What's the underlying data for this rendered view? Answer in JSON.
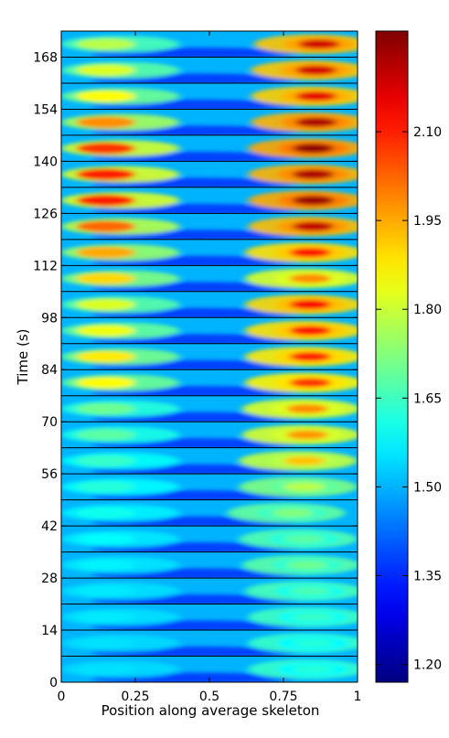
{
  "chart_data": {
    "type": "heatmap",
    "title": "",
    "xlabel": "Position along average skeleton",
    "ylabel": "Time (s)",
    "x_range": [
      0,
      1
    ],
    "y_range": [
      0,
      175
    ],
    "xticks": [
      "0",
      "0.25",
      "0.5",
      "0.75",
      "1"
    ],
    "yticks": [
      "0",
      "14",
      "28",
      "42",
      "56",
      "70",
      "84",
      "98",
      "112",
      "126",
      "140",
      "154",
      "168"
    ],
    "band_duration_s": 7,
    "n_bands": 25,
    "colormap": "jet",
    "colorbar": {
      "range": [
        1.17,
        2.27
      ],
      "ticks": [
        "1.20",
        "1.35",
        "1.50",
        "1.65",
        "1.80",
        "1.95",
        "2.10"
      ]
    },
    "bands": [
      {
        "t_start": 0,
        "left_peak": 1.55,
        "right_peak": 1.62,
        "right_pos": 0.85
      },
      {
        "t_start": 7,
        "left_peak": 1.55,
        "right_peak": 1.62,
        "right_pos": 0.85
      },
      {
        "t_start": 14,
        "left_peak": 1.56,
        "right_peak": 1.64,
        "right_pos": 0.85
      },
      {
        "t_start": 21,
        "left_peak": 1.56,
        "right_peak": 1.66,
        "right_pos": 0.84
      },
      {
        "t_start": 28,
        "left_peak": 1.57,
        "right_peak": 1.7,
        "right_pos": 0.83
      },
      {
        "t_start": 35,
        "left_peak": 1.58,
        "right_peak": 1.68,
        "right_pos": 0.82
      },
      {
        "t_start": 42,
        "left_peak": 1.6,
        "right_peak": 1.72,
        "right_pos": 0.78
      },
      {
        "t_start": 49,
        "left_peak": 1.62,
        "right_peak": 1.78,
        "right_pos": 0.82
      },
      {
        "t_start": 56,
        "left_peak": 1.64,
        "right_peak": 1.92,
        "right_pos": 0.82
      },
      {
        "t_start": 63,
        "left_peak": 1.68,
        "right_peak": 1.97,
        "right_pos": 0.83
      },
      {
        "t_start": 70,
        "left_peak": 1.7,
        "right_peak": 1.98,
        "right_pos": 0.83
      },
      {
        "t_start": 77,
        "left_peak": 1.86,
        "right_peak": 2.08,
        "right_pos": 0.84
      },
      {
        "t_start": 84,
        "left_peak": 1.88,
        "right_peak": 2.1,
        "right_pos": 0.84
      },
      {
        "t_start": 91,
        "left_peak": 1.84,
        "right_peak": 2.12,
        "right_pos": 0.84
      },
      {
        "t_start": 98,
        "left_peak": 1.82,
        "right_peak": 2.14,
        "right_pos": 0.84
      },
      {
        "t_start": 105,
        "left_peak": 1.9,
        "right_peak": 1.98,
        "right_pos": 0.84
      },
      {
        "t_start": 112,
        "left_peak": 1.95,
        "right_peak": 2.12,
        "right_pos": 0.84
      },
      {
        "t_start": 119,
        "left_peak": 2.02,
        "right_peak": 2.2,
        "right_pos": 0.85
      },
      {
        "t_start": 126,
        "left_peak": 2.1,
        "right_peak": 2.24,
        "right_pos": 0.85
      },
      {
        "t_start": 133,
        "left_peak": 2.1,
        "right_peak": 2.22,
        "right_pos": 0.85
      },
      {
        "t_start": 140,
        "left_peak": 2.08,
        "right_peak": 2.25,
        "right_pos": 0.85
      },
      {
        "t_start": 147,
        "left_peak": 1.98,
        "right_peak": 2.22,
        "right_pos": 0.86
      },
      {
        "t_start": 154,
        "left_peak": 1.86,
        "right_peak": 2.16,
        "right_pos": 0.86
      },
      {
        "t_start": 161,
        "left_peak": 1.82,
        "right_peak": 2.18,
        "right_pos": 0.86
      },
      {
        "t_start": 168,
        "left_peak": 1.78,
        "right_peak": 2.18,
        "right_pos": 0.87
      }
    ]
  }
}
